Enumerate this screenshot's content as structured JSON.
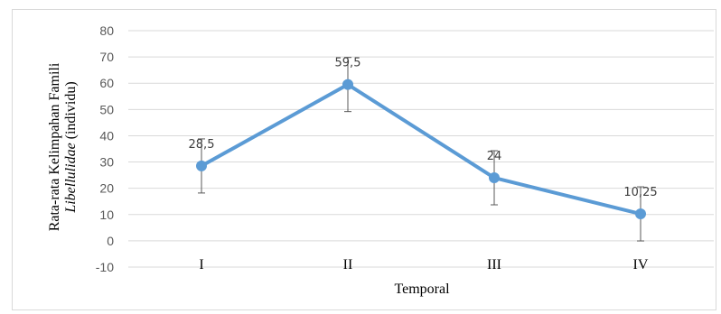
{
  "chart_data": {
    "type": "line",
    "categories": [
      "I",
      "II",
      "III",
      "IV"
    ],
    "series": [
      {
        "values": [
          28.5,
          59.5,
          24,
          10.25
        ],
        "error_minus": [
          10.3,
          10.3,
          10.3,
          10.3
        ],
        "error_plus": [
          10.3,
          10.3,
          10.3,
          10.3
        ],
        "color": "#5b9bd5"
      }
    ],
    "data_labels": [
      "28,5",
      "59,5",
      "24",
      "10,25"
    ],
    "y_ticks": [
      "-10",
      "0",
      "10",
      "20",
      "30",
      "40",
      "50",
      "60",
      "70",
      "80"
    ],
    "ylim": [
      -10,
      80
    ],
    "xlabel": "Temporal",
    "ylabel_line1": "Rata-rata Kelimpahan Famili",
    "ylabel_line2_italic": "Libellulidae",
    "ylabel_line2_rest": " (individu)",
    "grid": true
  }
}
